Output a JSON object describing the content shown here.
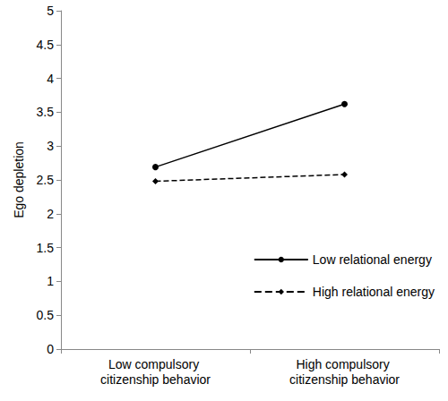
{
  "chart_data": {
    "type": "line",
    "y_label": "Ego depletion",
    "categories": [
      "Low compulsory citizenship behavior",
      "High compulsory citizenship behavior"
    ],
    "series": [
      {
        "name": "Low relational energy",
        "color": "#000000",
        "marker": "circle",
        "line_style": "solid",
        "values": [
          2.69,
          3.62
        ]
      },
      {
        "name": "High relational energy",
        "color": "#000000",
        "marker": "diamond",
        "line_style": "dashed",
        "values": [
          2.48,
          2.58
        ]
      }
    ],
    "ylim": [
      0,
      5
    ],
    "yticks": [
      0,
      0.5,
      1,
      1.5,
      2,
      2.5,
      3,
      3.5,
      4,
      4.5,
      5
    ],
    "grid": false,
    "legend": "lower right"
  }
}
